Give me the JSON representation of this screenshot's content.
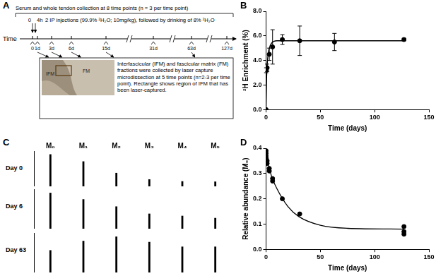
{
  "panel_labels": [
    "A",
    "B",
    "C",
    "D"
  ],
  "timeline": {
    "collection_note": "Serum and whole tendon collection at 8 time points (n = 3 per time point)",
    "injection_times": [
      "0",
      "4h"
    ],
    "injection_note": "2 IP injections (99.9% ²H₂O; 10mg/kg), followed by drinking of 8% ²H₂O",
    "axis_label": "Time",
    "time_points": [
      "0",
      "1d",
      "3d",
      "6d",
      "15d",
      "31d",
      "63d",
      "127d"
    ],
    "lcm_time_points": [
      "1d",
      "3d",
      "6d",
      "15d",
      "63d"
    ],
    "image_labels": [
      "IFM",
      "FM"
    ],
    "box_text": "Interfascicular (IFM) and fascicular matrix (FM) fractions were collected by laser capture microdissection at 5 time points (n=2-3 per time point). Rectangle shows region of IFM that has been laser-captured."
  },
  "chart_data": [
    {
      "type": "scatter",
      "x_label": "Time (days)",
      "y_label": "²H Enrichment (%)",
      "xlim": [
        0,
        150
      ],
      "xticks": [
        0,
        50,
        100,
        150
      ],
      "ylim": [
        0,
        8
      ],
      "yticks": [
        {
          "value": 0,
          "label": "0.0"
        },
        {
          "value": 2,
          "label": "2.0"
        },
        {
          "value": 4,
          "label": "4.0"
        },
        {
          "value": 6,
          "label": "6.0"
        },
        {
          "value": 8,
          "label": "8.0"
        }
      ],
      "grid": false,
      "color": "#000000",
      "series": [
        {
          "marker": "circle",
          "x": [
            0,
            0.17,
            1,
            3,
            6,
            15,
            31,
            63,
            127
          ],
          "values": [
            0,
            3.2,
            3.4,
            4.5,
            5.1,
            5.7,
            5.6,
            5.5,
            5.7
          ],
          "errors": [
            0,
            0.2,
            0.3,
            0.5,
            1.4,
            0.4,
            1.2,
            0.7,
            0.1
          ]
        },
        {
          "type": "line",
          "line_style": "solid",
          "x": [
            0,
            0.5,
            1,
            2,
            3,
            5,
            10,
            20,
            127
          ],
          "values": [
            0,
            2.5,
            3.6,
            4.6,
            5.0,
            5.4,
            5.6,
            5.6,
            5.6
          ]
        }
      ]
    },
    {
      "type": "bar",
      "categories": [
        "M₀",
        "M₁",
        "M₂",
        "M₃",
        "M₄",
        "M₅"
      ],
      "ylim": [
        0,
        1.1
      ],
      "tick_labels": "x",
      "grid": false,
      "color": "#000000",
      "series": [
        {
          "name": "Day 0",
          "values": [
            1.0,
            0.78,
            0.42,
            0.22,
            0.16,
            0.15
          ]
        },
        {
          "name": "Day 6",
          "values": [
            1.0,
            0.82,
            0.62,
            0.42,
            0.36,
            0.3
          ]
        },
        {
          "name": "Day 63",
          "values": [
            0.62,
            0.88,
            1.0,
            0.85,
            0.72,
            0.72
          ]
        }
      ]
    },
    {
      "type": "scatter",
      "x_label": "Time (days)",
      "y_label": "Relative abundance (M₀)",
      "xlim": [
        0,
        150
      ],
      "xticks": [
        0,
        50,
        100,
        150
      ],
      "ylim": [
        0,
        0.4
      ],
      "yticks": [
        {
          "value": 0,
          "label": "0.0"
        },
        0.1,
        0.2,
        0.3,
        0.4
      ],
      "grid": false,
      "color": "#000000",
      "series": [
        {
          "marker": "circle",
          "x": [
            0,
            0,
            0,
            0.17,
            1,
            1,
            3,
            3,
            6,
            6,
            15,
            31,
            127,
            127,
            127
          ],
          "values": [
            0.39,
            0.38,
            0.37,
            0.36,
            0.35,
            0.34,
            0.32,
            0.31,
            0.28,
            0.27,
            0.2,
            0.14,
            0.09,
            0.07,
            0.06
          ]
        },
        {
          "type": "line",
          "line_style": "solid",
          "x": [
            0,
            5,
            10,
            20,
            30,
            50,
            75,
            127
          ],
          "values": [
            0.37,
            0.29,
            0.24,
            0.17,
            0.13,
            0.095,
            0.083,
            0.08
          ]
        }
      ]
    }
  ]
}
